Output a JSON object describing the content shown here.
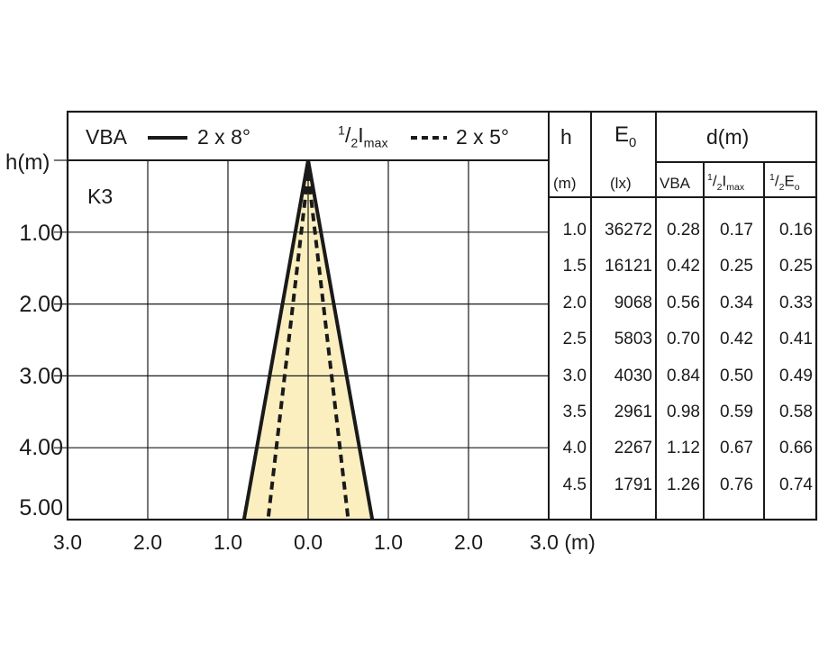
{
  "chart_data": {
    "type": "beam-diagram",
    "model": "K3",
    "ylabel": "h(m)",
    "y_ticks": [
      "1.00",
      "2.00",
      "3.00",
      "4.00",
      "5.00"
    ],
    "x_ticks": [
      "3.0",
      "2.0",
      "1.0",
      "0.0",
      "1.0",
      "2.0",
      "3.0 (m)"
    ],
    "xlim": [
      -3,
      3
    ],
    "ylim": [
      0,
      5
    ],
    "legend": {
      "vba_label": "VBA",
      "vba_angle": "2 x 8°",
      "half_imax_label": "1/2Imax",
      "half_imax_angle": "2 x 5°"
    },
    "series": [
      {
        "name": "VBA",
        "style": "solid",
        "angle_deg": 16,
        "base_half_width_m": 0.8,
        "height_m": 5
      },
      {
        "name": "1/2Imax",
        "style": "dashed",
        "angle_deg": 10,
        "base_half_width_m": 0.5,
        "height_m": 5
      }
    ],
    "fill_color": "#fbefc0",
    "table": {
      "headers": {
        "h": "h",
        "h_unit": "(m)",
        "e0": "E0",
        "e0_unit": "(lx)",
        "d": "d(m)",
        "vba": "VBA",
        "half_imax": "1/2Imax",
        "half_e0": "1/2E0"
      },
      "rows": [
        {
          "h": "1.0",
          "e0": "36272",
          "vba": "0.28",
          "half_imax": "0.17",
          "half_e0": "0.16"
        },
        {
          "h": "1.5",
          "e0": "16121",
          "vba": "0.42",
          "half_imax": "0.25",
          "half_e0": "0.25"
        },
        {
          "h": "2.0",
          "e0": "9068",
          "vba": "0.56",
          "half_imax": "0.34",
          "half_e0": "0.33"
        },
        {
          "h": "2.5",
          "e0": "5803",
          "vba": "0.70",
          "half_imax": "0.42",
          "half_e0": "0.41"
        },
        {
          "h": "3.0",
          "e0": "4030",
          "vba": "0.84",
          "half_imax": "0.50",
          "half_e0": "0.49"
        },
        {
          "h": "3.5",
          "e0": "2961",
          "vba": "0.98",
          "half_imax": "0.59",
          "half_e0": "0.58"
        },
        {
          "h": "4.0",
          "e0": "2267",
          "vba": "1.12",
          "half_imax": "0.67",
          "half_e0": "0.66"
        },
        {
          "h": "4.5",
          "e0": "1791",
          "vba": "1.26",
          "half_imax": "0.76",
          "half_e0": "0.74"
        }
      ]
    }
  }
}
